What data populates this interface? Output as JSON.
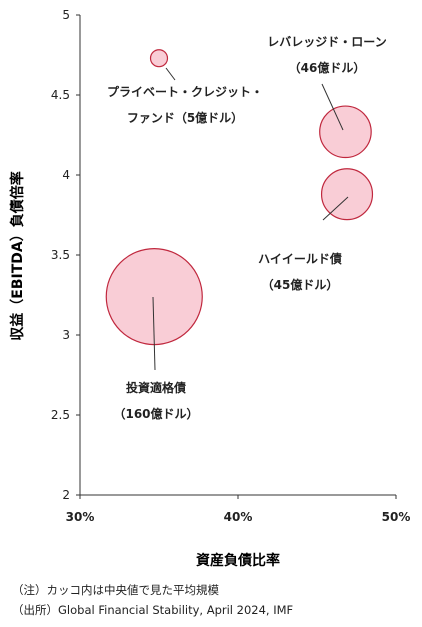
{
  "chart_data": {
    "type": "scatter",
    "title": "",
    "xlabel": "資産負債比率",
    "ylabel": "収益（EBITDA）負債倍率",
    "xlim": [
      30,
      50
    ],
    "ylim": [
      2,
      5
    ],
    "x_ticks": [
      "30%",
      "40%",
      "50%"
    ],
    "x_tick_values": [
      30,
      40,
      50
    ],
    "y_ticks": [
      "2",
      "2.5",
      "3",
      "3.5",
      "4",
      "4.5",
      "5"
    ],
    "y_tick_values": [
      2,
      2.5,
      3,
      3.5,
      4,
      4.5,
      5
    ],
    "grid": false,
    "bubble_color": "#f9cdd6",
    "bubble_stroke": "#c0283e",
    "points": [
      {
        "x": 35.0,
        "y": 4.73,
        "size": 5,
        "label_lines": [
          "プライベート・クレジット・",
          "ファンド（5億ドル）"
        ]
      },
      {
        "x": 46.8,
        "y": 4.27,
        "size": 46,
        "label_lines": [
          "レバレッジド・ローン",
          "（46億ドル）"
        ]
      },
      {
        "x": 46.9,
        "y": 3.88,
        "size": 45,
        "label_lines": [
          "ハイイールド債",
          "（45億ドル）"
        ]
      },
      {
        "x": 34.7,
        "y": 3.24,
        "size": 160,
        "label_lines": [
          "投資適格債",
          "（160億ドル）"
        ]
      }
    ]
  },
  "notes": {
    "note": "（注）カッコ内は中央値で見た平均規模",
    "source": "（出所）Global Financial Stability, April 2024, IMF"
  }
}
